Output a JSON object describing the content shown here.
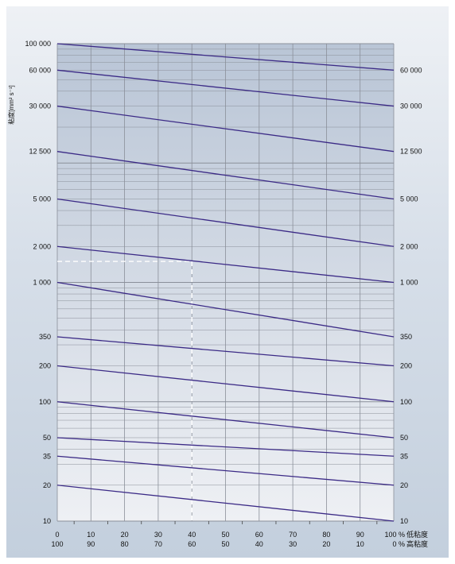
{
  "chart_data": {
    "type": "line",
    "ylabel": "粘度[mm² s⁻¹]",
    "y_scale": "log",
    "ylim": [
      10,
      100000
    ],
    "xlim": [
      0,
      100
    ],
    "x_ticks_top": [
      "0",
      "10",
      "20",
      "30",
      "40",
      "50",
      "60",
      "70",
      "80",
      "90",
      "100 %"
    ],
    "x_ticks_bottom": [
      "100",
      "90",
      "80",
      "70",
      "60",
      "50",
      "40",
      "30",
      "20",
      "10",
      "0 %"
    ],
    "x_label_top": "低粘度",
    "x_label_bottom": "高粘度",
    "left_ticks": [
      {
        "label": "100 000",
        "value": 100000
      },
      {
        "label": "60 000",
        "value": 60000
      },
      {
        "label": "30 000",
        "value": 30000
      },
      {
        "label": "12 500",
        "value": 12500
      },
      {
        "label": "5 000",
        "value": 5000
      },
      {
        "label": "2 000",
        "value": 2000
      },
      {
        "label": "1 000",
        "value": 1000
      },
      {
        "label": "350",
        "value": 350
      },
      {
        "label": "200",
        "value": 200
      },
      {
        "label": "100",
        "value": 100
      },
      {
        "label": "50",
        "value": 50
      },
      {
        "label": "35",
        "value": 35
      },
      {
        "label": "20",
        "value": 20
      },
      {
        "label": "10",
        "value": 10
      }
    ],
    "right_ticks": [
      {
        "label": "60 000",
        "value": 60000
      },
      {
        "label": "30 000",
        "value": 30000
      },
      {
        "label": "12 500",
        "value": 12500
      },
      {
        "label": "5 000",
        "value": 5000
      },
      {
        "label": "2 000",
        "value": 2000
      },
      {
        "label": "1 000",
        "value": 1000
      },
      {
        "label": "350",
        "value": 350
      },
      {
        "label": "200",
        "value": 200
      },
      {
        "label": "100",
        "value": 100
      },
      {
        "label": "50",
        "value": 50
      },
      {
        "label": "35",
        "value": 35
      },
      {
        "label": "20",
        "value": 20
      },
      {
        "label": "10",
        "value": 10
      }
    ],
    "series": [
      {
        "x": [
          0,
          100
        ],
        "y": [
          100000,
          60000
        ]
      },
      {
        "x": [
          0,
          100
        ],
        "y": [
          60000,
          30000
        ]
      },
      {
        "x": [
          0,
          100
        ],
        "y": [
          30000,
          12500
        ]
      },
      {
        "x": [
          0,
          100
        ],
        "y": [
          12500,
          5000
        ]
      },
      {
        "x": [
          0,
          100
        ],
        "y": [
          5000,
          2000
        ]
      },
      {
        "x": [
          0,
          100
        ],
        "y": [
          2000,
          1000
        ]
      },
      {
        "x": [
          0,
          100
        ],
        "y": [
          1000,
          350
        ]
      },
      {
        "x": [
          0,
          100
        ],
        "y": [
          350,
          200
        ]
      },
      {
        "x": [
          0,
          100
        ],
        "y": [
          200,
          100
        ]
      },
      {
        "x": [
          0,
          100
        ],
        "y": [
          100,
          50
        ]
      },
      {
        "x": [
          0,
          100
        ],
        "y": [
          50,
          35
        ]
      },
      {
        "x": [
          0,
          100
        ],
        "y": [
          35,
          20
        ]
      },
      {
        "x": [
          0,
          100
        ],
        "y": [
          20,
          10
        ]
      }
    ],
    "example_reading": {
      "x": 40,
      "y": 1500
    },
    "grid": true,
    "colors": {
      "line": "#3b2a86",
      "grid": "#8a8f99",
      "plot_top": "#b9c5d6",
      "plot_bottom": "#eef0f4",
      "guide": "#ffffff"
    }
  }
}
